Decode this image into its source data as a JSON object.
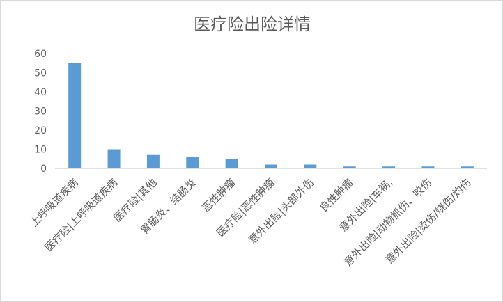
{
  "chart_data": {
    "type": "bar",
    "title": "医疗险出险详情",
    "categories": [
      "上呼吸道疾病",
      "医疗险|上呼吸道疾病",
      "医疗险|其他",
      "胃肠炎、结肠炎",
      "恶性肿瘤",
      "医疗险|恶性肿瘤",
      "意外出险|头部外伤",
      "良性肿瘤",
      "意外出险|车祸,",
      "意外出险|动物抓伤、咬伤",
      "意外出险|烫伤/烧伤/灼伤"
    ],
    "values": [
      55,
      10,
      7,
      6,
      5,
      2,
      2,
      1,
      1,
      1,
      1
    ],
    "ylim": [
      0,
      60
    ],
    "yticks": [
      0,
      10,
      20,
      30,
      40,
      50,
      60
    ],
    "grid": false,
    "legend": "none",
    "bar_color": "#5b9bd5",
    "xlabel": "",
    "ylabel": ""
  }
}
